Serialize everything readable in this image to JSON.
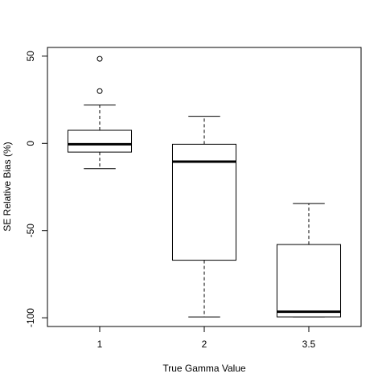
{
  "chart_data": {
    "type": "boxplot",
    "title": "",
    "xlabel": "True Gamma Value",
    "ylabel": "SE Relative Bias (%)",
    "categories": [
      "1",
      "2",
      "3.5"
    ],
    "ylim": [
      -105,
      55
    ],
    "yticks": [
      -100,
      -50,
      0,
      50
    ],
    "ytick_labels": [
      "-100",
      "-50",
      "0",
      "50"
    ],
    "boxes": [
      {
        "category": "1",
        "whisker_low": -14.5,
        "q1": -5.0,
        "median": -0.5,
        "q3": 7.5,
        "whisker_high": 22.0,
        "outliers": [
          30.0,
          48.5
        ]
      },
      {
        "category": "2",
        "whisker_low": -99.5,
        "q1": -67.0,
        "median": -10.5,
        "q3": -0.5,
        "whisker_high": 15.5,
        "outliers": []
      },
      {
        "category": "3.5",
        "whisker_low": -99.5,
        "q1": -99.5,
        "median": -96.5,
        "q3": -58.0,
        "whisker_high": -34.5,
        "outliers": []
      }
    ],
    "grid": false,
    "legend": "none"
  }
}
